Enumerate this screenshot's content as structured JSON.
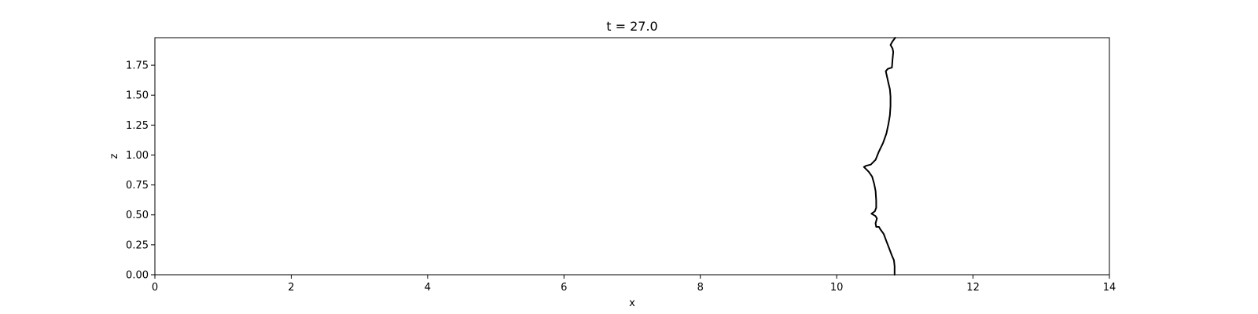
{
  "chart_data": {
    "type": "line",
    "title": "t = 27.0",
    "xlabel": "x",
    "ylabel": "z",
    "xlim": [
      0,
      14
    ],
    "ylim": [
      0,
      1.98
    ],
    "x_ticks": [
      0,
      2,
      4,
      6,
      8,
      10,
      12,
      14
    ],
    "x_tick_labels": [
      "0",
      "2",
      "4",
      "6",
      "8",
      "10",
      "12",
      "14"
    ],
    "y_ticks": [
      0,
      0.25,
      0.5,
      0.75,
      1.0,
      1.25,
      1.5,
      1.75
    ],
    "y_tick_labels": [
      "0.00",
      "0.25",
      "0.50",
      "0.75",
      "1.00",
      "1.25",
      "1.50",
      "1.75"
    ],
    "grid": false,
    "line_color": "#000000",
    "series": [
      {
        "x": [
          10.85,
          10.85,
          10.84,
          10.81,
          10.77,
          10.73,
          10.69,
          10.64,
          10.62,
          10.6,
          10.58,
          10.57,
          10.59,
          10.57,
          10.54,
          10.51,
          10.56,
          10.58,
          10.58,
          10.57,
          10.55,
          10.52,
          10.47,
          10.4,
          10.43,
          10.5,
          10.57,
          10.62,
          10.68,
          10.73,
          10.76,
          10.78,
          10.79,
          10.79,
          10.78,
          10.76,
          10.72,
          10.75,
          10.81,
          10.82,
          10.83,
          10.82,
          10.79,
          10.82,
          10.86
        ],
        "y": [
          0.0,
          0.07,
          0.12,
          0.16,
          0.22,
          0.28,
          0.34,
          0.38,
          0.4,
          0.4,
          0.4,
          0.43,
          0.47,
          0.49,
          0.5,
          0.51,
          0.53,
          0.56,
          0.62,
          0.7,
          0.76,
          0.82,
          0.86,
          0.9,
          0.91,
          0.92,
          0.96,
          1.03,
          1.1,
          1.18,
          1.26,
          1.33,
          1.41,
          1.49,
          1.55,
          1.6,
          1.7,
          1.72,
          1.73,
          1.8,
          1.86,
          1.89,
          1.92,
          1.95,
          1.98
        ]
      }
    ]
  }
}
